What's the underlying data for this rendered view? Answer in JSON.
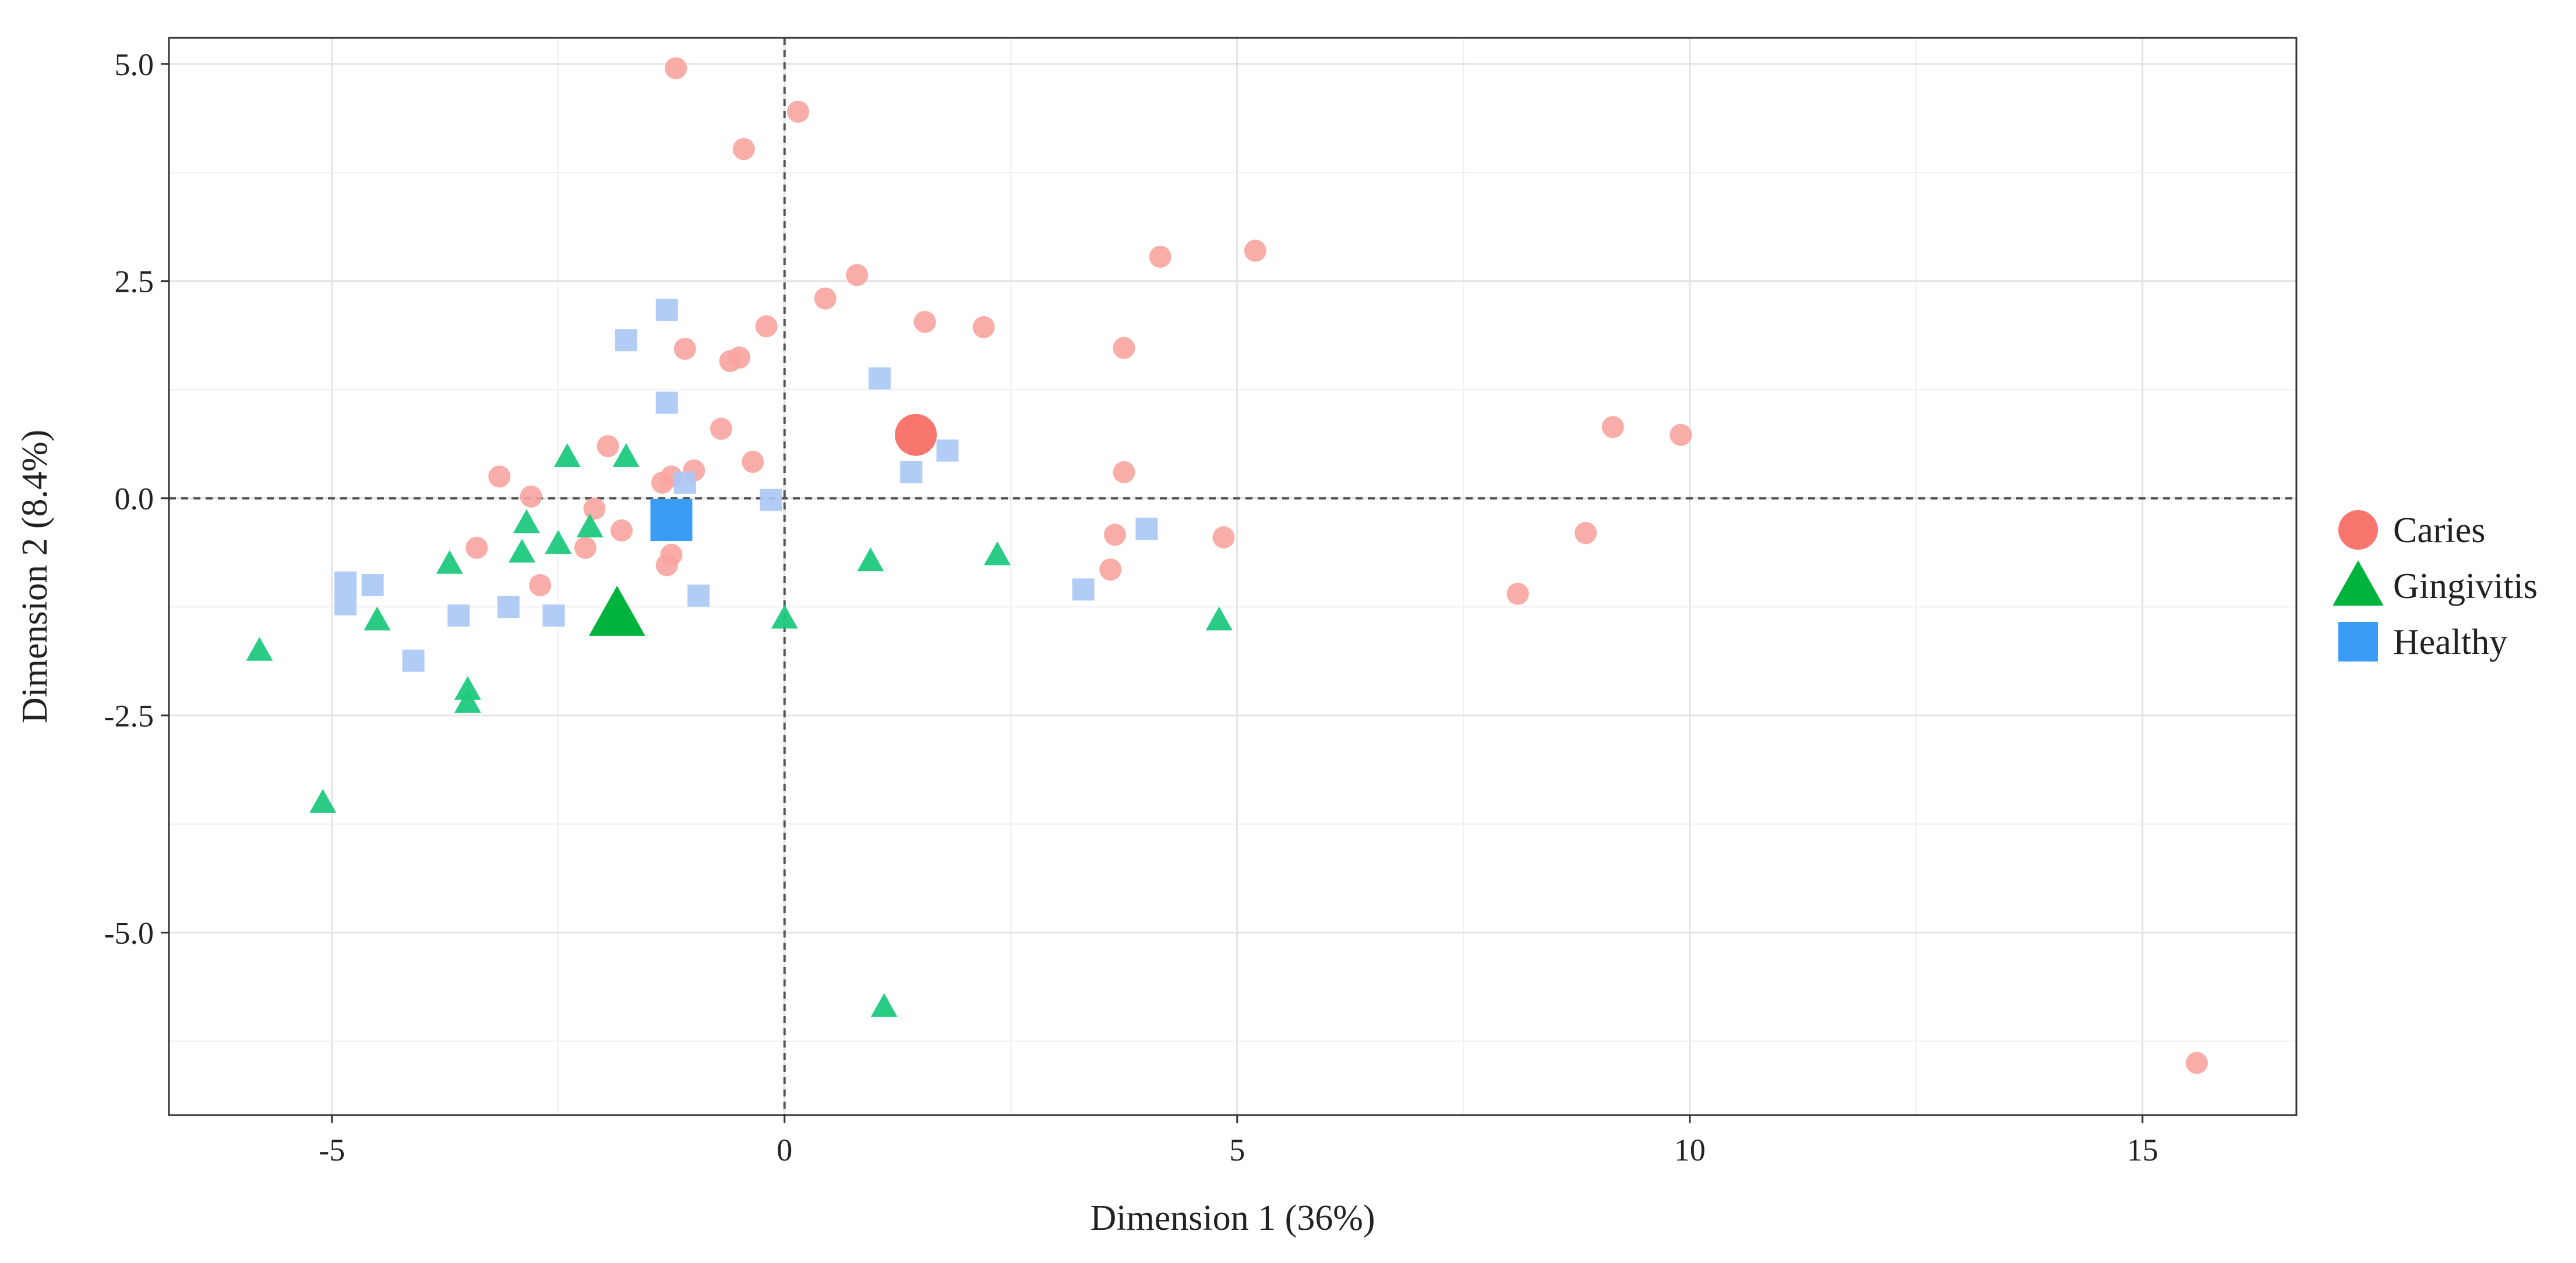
{
  "chart_data": {
    "type": "scatter",
    "title": "",
    "xlabel": "Dimension 1 (36%)",
    "ylabel": "Dimension 2 (8.4%)",
    "xlim": [
      -6.8,
      16.7
    ],
    "ylim": [
      -7.1,
      5.3
    ],
    "xticks": [
      -5,
      0,
      5,
      10,
      15
    ],
    "yticks": [
      5.0,
      2.5,
      0.0,
      -2.5,
      -5.0
    ],
    "xtick_labels": [
      "-5",
      "0",
      "5",
      "10",
      "15"
    ],
    "ytick_labels": [
      "5.0",
      "2.5",
      "0.0",
      "-2.5",
      "-5.0"
    ],
    "reference_lines": {
      "x": 0,
      "y": 0,
      "style": "dashed"
    },
    "grid": true,
    "legend_position": "right",
    "series": [
      {
        "name": "Caries",
        "marker": "circle",
        "color": "#F8766D",
        "points": [
          [
            -1.2,
            4.95
          ],
          [
            0.15,
            4.45
          ],
          [
            -0.45,
            4.02
          ],
          [
            4.15,
            2.78
          ],
          [
            5.2,
            2.85
          ],
          [
            0.8,
            2.57
          ],
          [
            0.45,
            2.3
          ],
          [
            1.55,
            2.03
          ],
          [
            2.2,
            1.97
          ],
          [
            -0.2,
            1.98
          ],
          [
            -1.1,
            1.72
          ],
          [
            -0.6,
            1.58
          ],
          [
            -0.5,
            1.62
          ],
          [
            3.75,
            1.73
          ],
          [
            -0.7,
            0.8
          ],
          [
            9.15,
            0.82
          ],
          [
            9.9,
            0.73
          ],
          [
            -1.95,
            0.6
          ],
          [
            -0.35,
            0.42
          ],
          [
            -1.0,
            0.32
          ],
          [
            -1.25,
            0.25
          ],
          [
            -3.15,
            0.25
          ],
          [
            -1.35,
            0.18
          ],
          [
            3.75,
            0.3
          ],
          [
            -2.8,
            0.02
          ],
          [
            -2.1,
            -0.12
          ],
          [
            -1.8,
            -0.37
          ],
          [
            3.65,
            -0.42
          ],
          [
            4.85,
            -0.45
          ],
          [
            8.85,
            -0.4
          ],
          [
            -3.4,
            -0.57
          ],
          [
            -2.2,
            -0.57
          ],
          [
            -1.25,
            -0.65
          ],
          [
            -1.3,
            -0.77
          ],
          [
            3.6,
            -0.82
          ],
          [
            -2.7,
            -1.0
          ],
          [
            8.1,
            -1.1
          ],
          [
            15.6,
            -6.5
          ]
        ],
        "centroid": [
          1.45,
          0.73
        ]
      },
      {
        "name": "Gingivitis",
        "marker": "triangle",
        "color": "#00BA38",
        "points": [
          [
            -2.4,
            0.48
          ],
          [
            -1.75,
            0.48
          ],
          [
            -2.85,
            -0.28
          ],
          [
            -2.15,
            -0.33
          ],
          [
            -2.5,
            -0.52
          ],
          [
            -2.9,
            -0.62
          ],
          [
            -3.7,
            -0.75
          ],
          [
            0.95,
            -0.72
          ],
          [
            2.35,
            -0.65
          ],
          [
            -4.5,
            -1.4
          ],
          [
            0.0,
            -1.38
          ],
          [
            4.8,
            -1.4
          ],
          [
            -5.8,
            -1.75
          ],
          [
            -3.5,
            -2.2
          ],
          [
            -3.5,
            -2.35
          ],
          [
            -5.1,
            -3.5
          ],
          [
            1.1,
            -5.85
          ]
        ],
        "centroid": [
          -1.85,
          -1.33
        ]
      },
      {
        "name": "Healthy",
        "marker": "square",
        "color": "#619CFF",
        "points": [
          [
            -1.3,
            2.17
          ],
          [
            -1.75,
            1.82
          ],
          [
            1.05,
            1.38
          ],
          [
            -1.3,
            1.1
          ],
          [
            1.8,
            0.55
          ],
          [
            1.4,
            0.3
          ],
          [
            -1.1,
            0.18
          ],
          [
            -0.15,
            -0.02
          ],
          [
            4.0,
            -0.35
          ],
          [
            3.3,
            -1.05
          ],
          [
            -4.85,
            -0.97
          ],
          [
            -4.55,
            -1.0
          ],
          [
            -0.95,
            -1.12
          ],
          [
            -4.85,
            -1.22
          ],
          [
            -3.05,
            -1.25
          ],
          [
            -3.6,
            -1.35
          ],
          [
            -2.55,
            -1.35
          ],
          [
            -4.1,
            -1.87
          ]
        ],
        "centroid": [
          -1.25,
          -0.25
        ]
      }
    ]
  }
}
